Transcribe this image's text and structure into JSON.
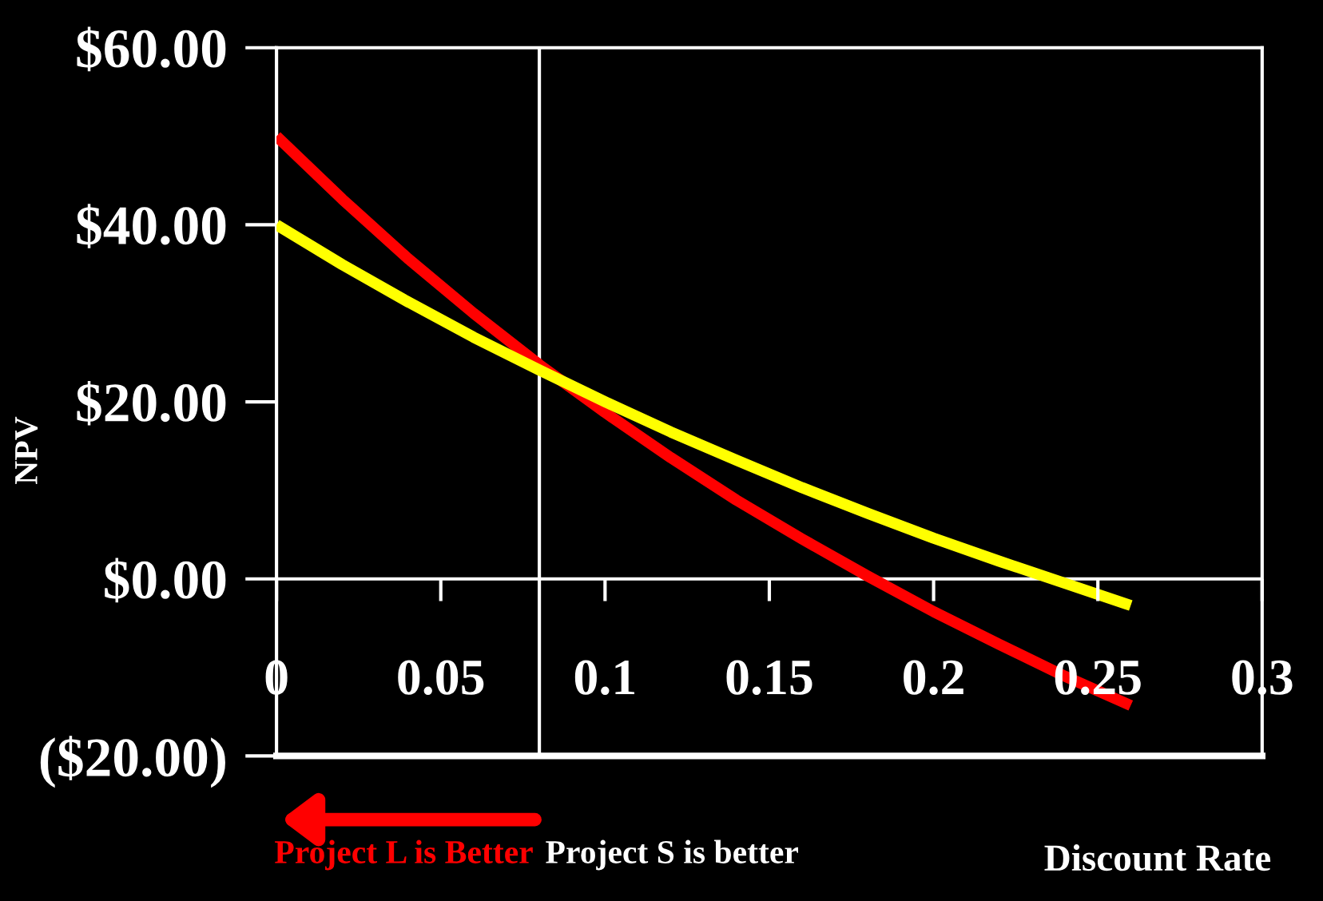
{
  "chart_data": {
    "type": "line",
    "ylabel": "NPV",
    "xlabel": "Discount Rate",
    "x": [
      0,
      0.02,
      0.04,
      0.06,
      0.08,
      0.1,
      0.12,
      0.14,
      0.16,
      0.18,
      0.2,
      0.22,
      0.24,
      0.26
    ],
    "series": [
      {
        "color": "#ff0000",
        "values": [
          50,
          42.9,
          36.2,
          30.0,
          24.2,
          18.8,
          13.7,
          8.9,
          4.5,
          0.3,
          -3.7,
          -7.4,
          -11.0,
          -14.3
        ]
      },
      {
        "color": "#ffff00",
        "values": [
          40,
          35.5,
          31.3,
          27.3,
          23.6,
          20.0,
          16.6,
          13.4,
          10.3,
          7.4,
          4.6,
          2.0,
          -0.5,
          -3.0
        ]
      }
    ],
    "xlim": [
      0,
      0.3
    ],
    "xticks": [
      0,
      0.05,
      0.1,
      0.15,
      0.2,
      0.25,
      0.3
    ],
    "ylim": [
      -20,
      60
    ],
    "yticks": [
      {
        "value": -20,
        "label": "($20.00)"
      },
      {
        "value": 0,
        "label": "$0.00"
      },
      {
        "value": 20,
        "label": "$20.00"
      },
      {
        "value": 40,
        "label": "$40.00"
      },
      {
        "value": 60,
        "label": "$60.00"
      }
    ],
    "ref_lines": [
      {
        "axis": "x",
        "value": 0.08,
        "color": "#ffffff"
      },
      {
        "axis": "y",
        "value": 0,
        "color": "#ffffff"
      }
    ],
    "annotations": [
      "Project L is Better",
      "Project S is better"
    ],
    "grid": false,
    "legend": false,
    "marker": "none",
    "line_style": "solid"
  }
}
